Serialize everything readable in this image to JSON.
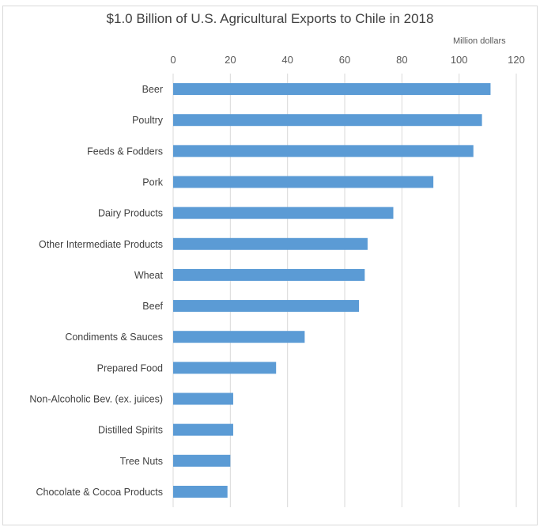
{
  "chart_data": {
    "type": "bar",
    "orientation": "horizontal",
    "title": "$1.0 Billion of U.S. Agricultural Exports to Chile in 2018",
    "unit_label": "Million dollars",
    "xlim": [
      0,
      120
    ],
    "xticks": [
      0,
      20,
      40,
      60,
      80,
      100,
      120
    ],
    "grid": true,
    "categories": [
      "Beer",
      "Poultry",
      "Feeds & Fodders",
      "Pork",
      "Dairy Products",
      "Other Intermediate Products",
      "Wheat",
      "Beef",
      "Condiments & Sauces",
      "Prepared Food",
      "Non-Alcoholic Bev. (ex. juices)",
      "Distilled Spirits",
      "Tree Nuts",
      "Chocolate & Cocoa Products"
    ],
    "values": [
      111,
      108,
      105,
      91,
      77,
      68,
      67,
      65,
      46,
      36,
      21,
      21,
      20,
      19
    ],
    "color": "#5b9bd5"
  }
}
